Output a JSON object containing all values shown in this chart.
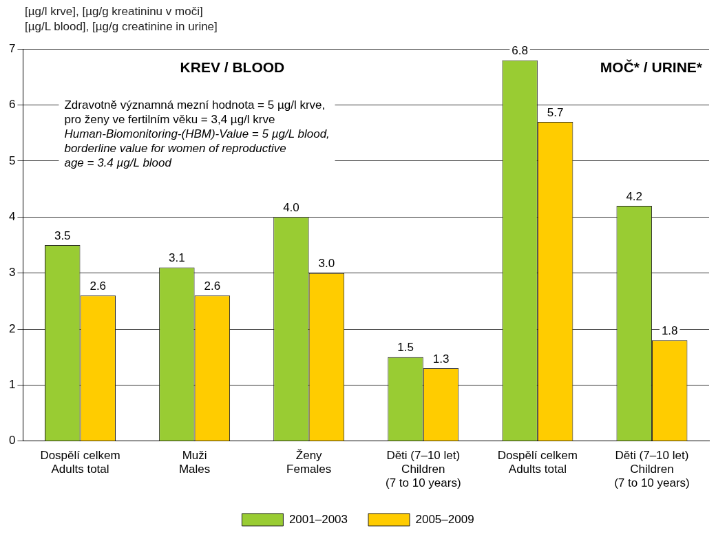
{
  "chart_data": {
    "type": "bar",
    "ylabel": "[µg/l krve], [µg/g kreatininu v moči]\n[µg/L blood], [µg/g creatinine in urine]",
    "categories": [
      "Dospělí celkem\nAdults total",
      "Muži\nMales",
      "Ženy\nFemales",
      "Děti (7–10 let)\nChildren\n(7 to 10 years)",
      "Dospělí celkem\nAdults total",
      "Děti (7–10 let)\nChildren\n(7 to 10 years)"
    ],
    "series": [
      {
        "name": "2001–2003",
        "color": "#99cc33",
        "values": [
          3.5,
          3.1,
          4.0,
          1.5,
          6.8,
          4.2
        ],
        "value_labels": [
          "3.5",
          "3.1",
          "4.0",
          "1.5",
          "6.8",
          "4.2"
        ]
      },
      {
        "name": "2005–2009",
        "color": "#ffcc00",
        "values": [
          2.6,
          2.6,
          3.0,
          1.3,
          5.7,
          1.8
        ],
        "value_labels": [
          "2.6",
          "2.6",
          "3.0",
          "1.3",
          "5.7",
          "1.8"
        ]
      }
    ],
    "ylim": [
      0,
      7
    ],
    "yticks": [
      0,
      1,
      2,
      3,
      4,
      5,
      6,
      7
    ],
    "grid": "y",
    "legend": "bottom",
    "annotations": [
      "KREV / BLOOD",
      "MOČ* / URINE*",
      "Zdravotně významná mezní hodnota = 5 µg/l krve,\npro ženy ve fertilním věku = 3,4 µg/l krve\nHuman-Biomonitoring-(HBM)-Value = 5 µg/L blood,\nborderline value for women of reproductive\nage = 3.4 µg/L blood"
    ]
  }
}
